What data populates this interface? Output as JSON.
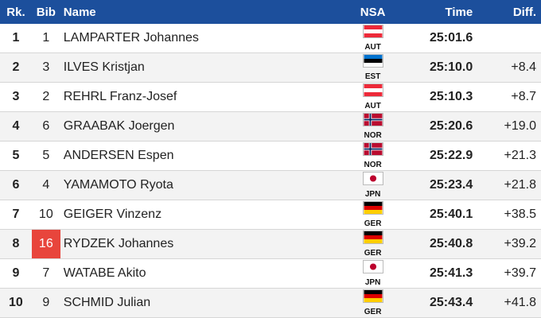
{
  "header": {
    "rank": "Rk.",
    "bib": "Bib",
    "name": "Name",
    "nsa": "NSA",
    "time": "Time",
    "diff": "Diff."
  },
  "rows": [
    {
      "rank": "1",
      "bib": "1",
      "name": "LAMPARTER Johannes",
      "nsa": "AUT",
      "flag": "flag-austria-icon",
      "time": "25:01.6",
      "diff": ""
    },
    {
      "rank": "2",
      "bib": "3",
      "name": "ILVES Kristjan",
      "nsa": "EST",
      "flag": "flag-estonia-icon",
      "time": "25:10.0",
      "diff": "+8.4"
    },
    {
      "rank": "3",
      "bib": "2",
      "name": "REHRL Franz-Josef",
      "nsa": "AUT",
      "flag": "flag-austria-icon",
      "time": "25:10.3",
      "diff": "+8.7"
    },
    {
      "rank": "4",
      "bib": "6",
      "name": "GRAABAK Joergen",
      "nsa": "NOR",
      "flag": "flag-norway-icon",
      "time": "25:20.6",
      "diff": "+19.0"
    },
    {
      "rank": "5",
      "bib": "5",
      "name": "ANDERSEN Espen",
      "nsa": "NOR",
      "flag": "flag-norway-icon",
      "time": "25:22.9",
      "diff": "+21.3"
    },
    {
      "rank": "6",
      "bib": "4",
      "name": "YAMAMOTO Ryota",
      "nsa": "JPN",
      "flag": "flag-japan-icon",
      "time": "25:23.4",
      "diff": "+21.8"
    },
    {
      "rank": "7",
      "bib": "10",
      "name": "GEIGER Vinzenz",
      "nsa": "GER",
      "flag": "flag-germany-icon",
      "time": "25:40.1",
      "diff": "+38.5"
    },
    {
      "rank": "8",
      "bib": "16",
      "name": "RYDZEK Johannes",
      "nsa": "GER",
      "flag": "flag-germany-icon",
      "time": "25:40.8",
      "diff": "+39.2"
    },
    {
      "rank": "9",
      "bib": "7",
      "name": "WATABE Akito",
      "nsa": "JPN",
      "flag": "flag-japan-icon",
      "time": "25:41.3",
      "diff": "+39.7"
    },
    {
      "rank": "10",
      "bib": "9",
      "name": "SCHMID Julian",
      "nsa": "GER",
      "flag": "flag-germany-icon",
      "time": "25:43.4",
      "diff": "+41.8"
    }
  ],
  "colors": {
    "header_bg": "#1c4f9c",
    "bib_highlight": "#e8453c",
    "alt_row": "#f3f3f3"
  }
}
